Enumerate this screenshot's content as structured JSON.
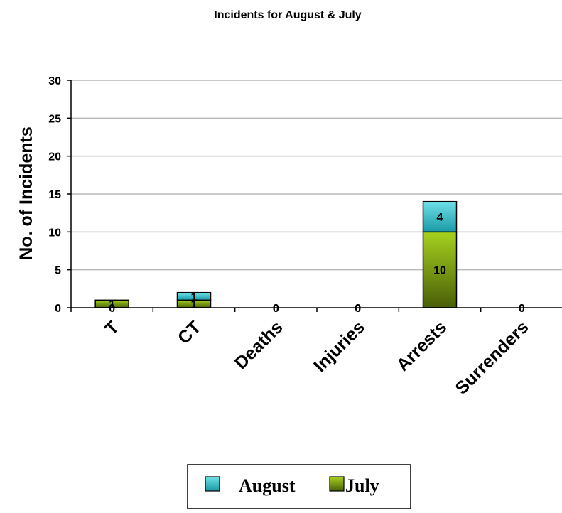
{
  "chart_data": {
    "type": "bar",
    "stacked": true,
    "title": "Incidents for August & July",
    "xlabel": "",
    "ylabel": "No. of Incidents",
    "ylim": [
      0,
      30
    ],
    "yticks": [
      0,
      5,
      10,
      15,
      20,
      25,
      30
    ],
    "grid": true,
    "legend_position": "bottom",
    "categories": [
      "T",
      "CT",
      "Deaths",
      "Injuries",
      "Arrests",
      "Surrenders"
    ],
    "series": [
      {
        "name": "July",
        "values": [
          1,
          1,
          0,
          0,
          10,
          0
        ],
        "labels": [
          "1",
          "1",
          "0",
          "0",
          "10",
          "0"
        ],
        "color": "#7a9a12",
        "color_light": "#a6d21e",
        "color_dark": "#4a5e08"
      },
      {
        "name": "August",
        "values": [
          0,
          1,
          0,
          0,
          4,
          0
        ],
        "labels": [
          "0",
          "1",
          "0",
          "0",
          "4",
          "0"
        ],
        "color": "#33c4cc",
        "color_light": "#6ee0e6",
        "color_dark": "#1a9aa6"
      }
    ],
    "legend_order": [
      "August",
      "July"
    ]
  }
}
